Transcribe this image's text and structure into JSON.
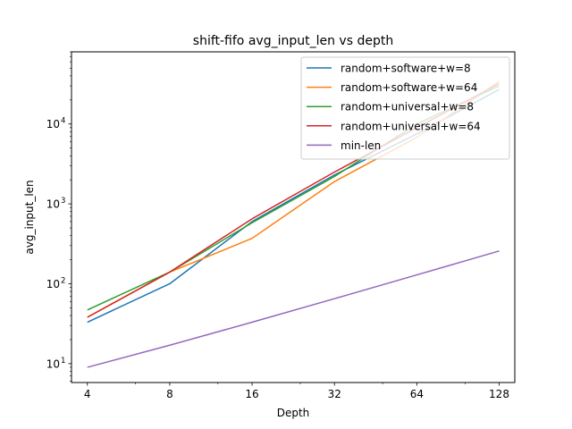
{
  "chart_data": {
    "type": "line",
    "title": "shift-fifo avg_input_len vs depth",
    "xlabel": "Depth",
    "ylabel": "avg_input_len",
    "xscale": "log2",
    "yscale": "log10",
    "xlim": [
      3.5,
      146
    ],
    "ylim": [
      5.8,
      80000
    ],
    "xticks": [
      {
        "value": 4,
        "label": "4"
      },
      {
        "value": 8,
        "label": "8"
      },
      {
        "value": 16,
        "label": "16"
      },
      {
        "value": 32,
        "label": "32"
      },
      {
        "value": 64,
        "label": "64"
      },
      {
        "value": 128,
        "label": "128"
      }
    ],
    "yticks": [
      {
        "value": 10,
        "label": "10",
        "exp": "1"
      },
      {
        "value": 100,
        "label": "10",
        "exp": "2"
      },
      {
        "value": 1000,
        "label": "10",
        "exp": "3"
      },
      {
        "value": 10000,
        "label": "10",
        "exp": "4"
      }
    ],
    "legend_position": "top-right",
    "grid": false,
    "x": [
      4,
      8,
      16,
      32,
      64,
      128
    ],
    "series": [
      {
        "name": "random+software+w=8",
        "color": "#1f77b4",
        "values": [
          33,
          100,
          600,
          2300,
          7500,
          27000
        ]
      },
      {
        "name": "random+software+w=64",
        "color": "#ff7f0e",
        "values": [
          38,
          140,
          370,
          1900,
          6800,
          34000
        ]
      },
      {
        "name": "random+universal+w=8",
        "color": "#2ca02c",
        "values": [
          47,
          140,
          580,
          2200,
          10000,
          30000
        ]
      },
      {
        "name": "random+universal+w=64",
        "color": "#d62728",
        "values": [
          38,
          140,
          650,
          2500,
          9000,
          32000
        ]
      },
      {
        "name": "min-len",
        "color": "#9467bd",
        "values": [
          9,
          17,
          33,
          65,
          129,
          257
        ]
      }
    ]
  }
}
